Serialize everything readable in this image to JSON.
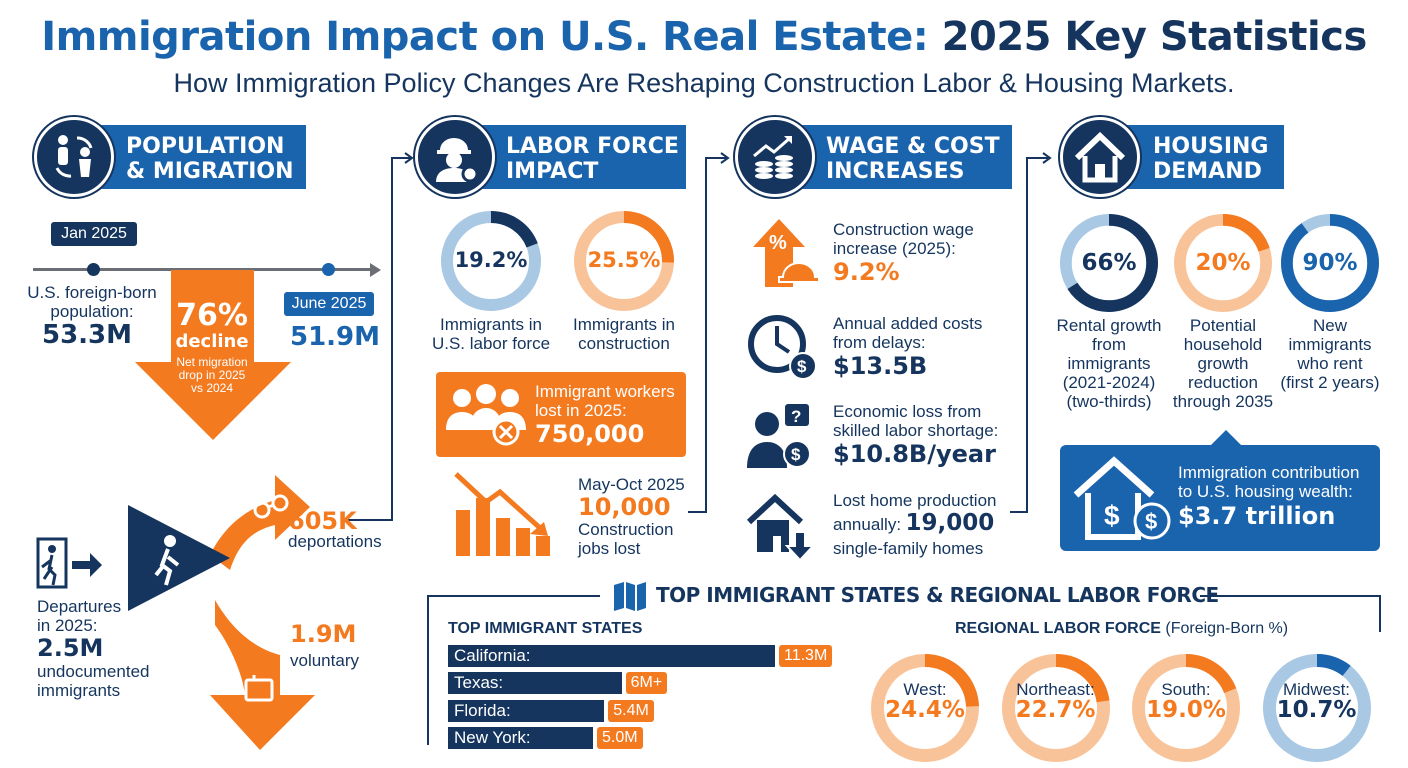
{
  "header": {
    "title_part1": "Immigration Impact on U.S. Real Estate:",
    "title_part2": "2025 Key Statistics",
    "subtitle": "How Immigration Policy Changes Are Reshaping Construction Labor & Housing Markets."
  },
  "colors": {
    "navy": "#15355e",
    "blue": "#1a63ad",
    "orange": "#f47a20",
    "light_orange": "#f9c39a",
    "light_blue": "#a9c8e4"
  },
  "population": {
    "heading_1": "POPULATION",
    "heading_2": "& MIGRATION",
    "icon": "people-exchange-icon",
    "start_label": "Jan 2025",
    "start_text_1": "U.S. foreign-born",
    "start_text_2": "population:",
    "start_value": "53.3M",
    "end_label": "June 2025",
    "end_value": "51.9M",
    "decline_value": "76%",
    "decline_word": "decline",
    "decline_note_1": "Net migration",
    "decline_note_2": "drop in 2025",
    "decline_note_3": "vs 2024",
    "departures_1": "Departures",
    "departures_2": "in 2025:",
    "departures_value": "2.5M",
    "departures_3": "undocumented",
    "departures_4": "immigrants",
    "deportations_value": "605K",
    "deportations_label": "deportations",
    "voluntary_value": "1.9M",
    "voluntary_label": "voluntary"
  },
  "labor": {
    "heading_1": "LABOR FORCE",
    "heading_2": "IMPACT",
    "icon": "worker-gear-icon",
    "donuts": [
      {
        "value": "19.2%",
        "pct": 19.2,
        "label_1": "Immigrants in",
        "label_2": "U.S. labor force"
      },
      {
        "value": "25.5%",
        "pct": 25.5,
        "label_1": "Immigrants in",
        "label_2": "construction"
      }
    ],
    "lost_label_1": "Immigrant workers",
    "lost_label_2": "lost in 2025:",
    "lost_value": "750,000",
    "jobs_period": "May-Oct 2025",
    "jobs_value": "10,000",
    "jobs_label_1": "Construction",
    "jobs_label_2": "jobs lost"
  },
  "wage": {
    "heading_1": "WAGE & COST",
    "heading_2": "INCREASES",
    "icon": "chart-coins-icon",
    "items": [
      {
        "icon": "percent-arrow-hardhat-icon",
        "label_1": "Construction wage",
        "label_2": "increase (2025):",
        "value": "9.2%"
      },
      {
        "icon": "clock-dollar-icon",
        "label_1": "Annual added costs",
        "label_2": "from delays:",
        "value": "$13.5B"
      },
      {
        "icon": "person-question-dollar-icon",
        "label_1": "Economic loss from",
        "label_2": "skilled labor shortage:",
        "value": "$10.8B/year"
      },
      {
        "icon": "house-down-arrow-icon",
        "label_1": "Lost home production",
        "label_2": "annually:",
        "value": "19,000",
        "label_3": "single-family homes"
      }
    ]
  },
  "housing": {
    "heading_1": "HOUSING",
    "heading_2": "DEMAND",
    "icon": "house-icon",
    "donuts": [
      {
        "value": "66%",
        "pct": 66,
        "lines": [
          "Rental growth",
          "from",
          "immigrants",
          "(2021-2024)",
          "(two-thirds)"
        ]
      },
      {
        "value": "20%",
        "pct": 20,
        "lines": [
          "Potential",
          "household",
          "growth",
          "reduction",
          "through 2035"
        ]
      },
      {
        "value": "90%",
        "pct": 90,
        "lines": [
          "New",
          "immigrants",
          "who rent",
          "(first 2 years)"
        ]
      }
    ],
    "wealth_label_1": "Immigration contribution",
    "wealth_label_2": "to U.S. housing wealth:",
    "wealth_value": "$3.7 trillion"
  },
  "states": {
    "heading": "TOP IMMIGRANT STATES & REGIONAL LABOR FORCE",
    "states_title": "TOP IMMIGRANT STATES",
    "list": [
      {
        "name": "California:",
        "value": "11.3M",
        "millions": 11.3
      },
      {
        "name": "Texas:",
        "value": "6M+",
        "millions": 6
      },
      {
        "name": "Florida:",
        "value": "5.4M",
        "millions": 5.4
      },
      {
        "name": "New York:",
        "value": "5.0M",
        "millions": 5.0
      }
    ],
    "regional_title": "REGIONAL LABOR FORCE",
    "regional_suffix": "(Foreign-Born %)",
    "regions": [
      {
        "name": "West:",
        "value": "24.4%",
        "pct": 24.4
      },
      {
        "name": "Northeast:",
        "value": "22.7%",
        "pct": 22.7
      },
      {
        "name": "South:",
        "value": "19.0%",
        "pct": 19.0
      },
      {
        "name": "Midwest:",
        "value": "10.7%",
        "pct": 10.7
      }
    ]
  }
}
